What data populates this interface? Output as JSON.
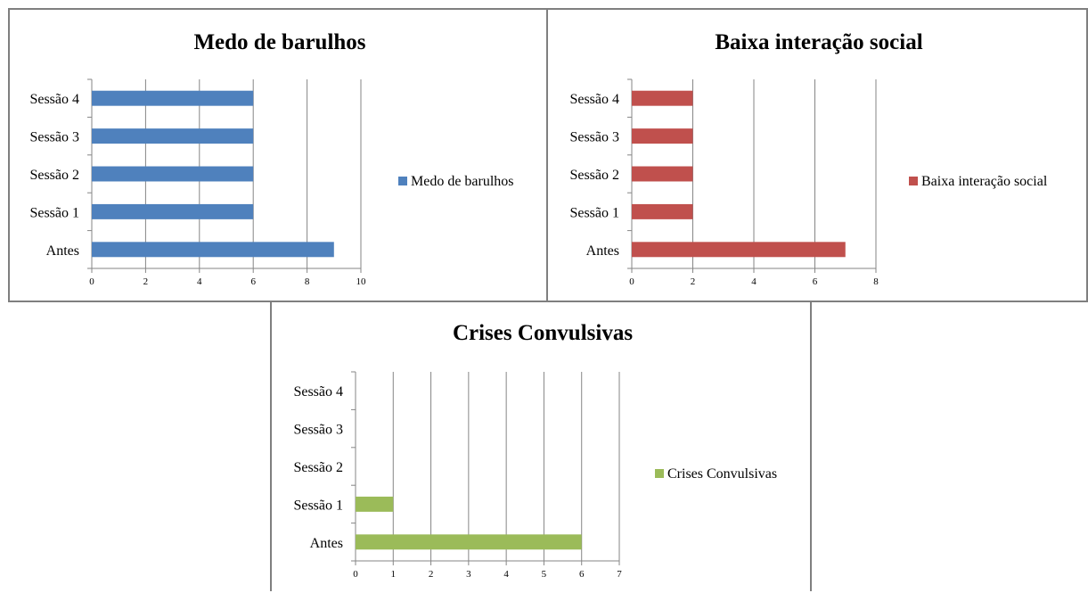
{
  "chart_data": [
    {
      "type": "bar",
      "orientation": "horizontal",
      "title": "Medo de barulhos",
      "categories": [
        "Antes",
        "Sessão 1",
        "Sessão 2",
        "Sessão 3",
        "Sessão 4"
      ],
      "series": [
        {
          "name": "Medo de barulhos",
          "values": [
            9,
            6,
            6,
            6,
            6
          ],
          "color": "#4f81bd"
        }
      ],
      "xlim": [
        0,
        10
      ],
      "xticks": [
        "0",
        "2",
        "4",
        "6",
        "8",
        "10"
      ],
      "grid": true,
      "legend": "right"
    },
    {
      "type": "bar",
      "orientation": "horizontal",
      "title": "Baixa interação social",
      "categories": [
        "Antes",
        "Sessão 1",
        "Sessão 2",
        "Sessão 3",
        "Sessão 4"
      ],
      "series": [
        {
          "name": "Baixa interação social",
          "values": [
            7,
            2,
            2,
            2,
            2
          ],
          "color": "#c0504d"
        }
      ],
      "xlim": [
        0,
        8
      ],
      "xticks": [
        "0",
        "2",
        "4",
        "6",
        "8"
      ],
      "grid": true,
      "legend": "right"
    },
    {
      "type": "bar",
      "orientation": "horizontal",
      "title": "Crises Convulsivas",
      "categories": [
        "Antes",
        "Sessão 1",
        "Sessão 2",
        "Sessão 3",
        "Sessão 4"
      ],
      "series": [
        {
          "name": "Crises Convulsivas",
          "values": [
            6,
            1,
            0,
            0,
            0
          ],
          "color": "#9bbb59"
        }
      ],
      "xlim": [
        0,
        7
      ],
      "xticks": [
        "0",
        "1",
        "2",
        "3",
        "4",
        "5",
        "6",
        "7"
      ],
      "grid": true,
      "legend": "right"
    }
  ]
}
